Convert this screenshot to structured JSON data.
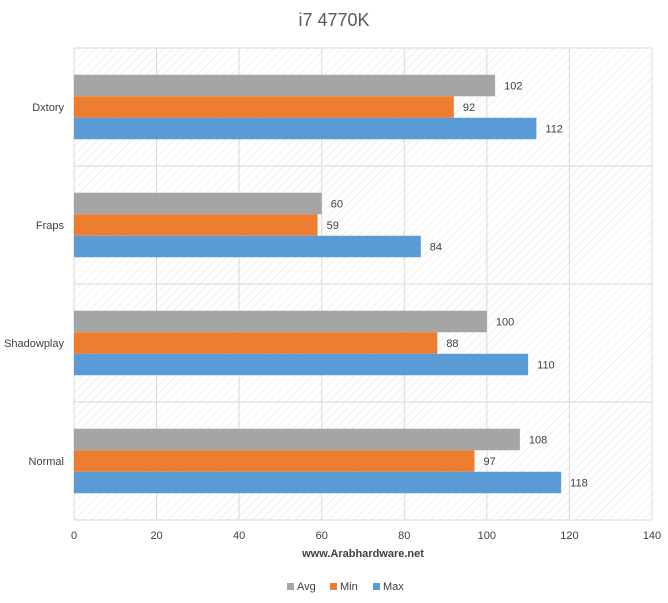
{
  "chart_data": {
    "type": "bar",
    "orientation": "horizontal",
    "title": "i7 4770K",
    "xlabel": "www.Arabhardware.net",
    "ylabel": "",
    "categories": [
      "Dxtory",
      "Fraps",
      "Shadowplay",
      "Normal"
    ],
    "series": [
      {
        "name": "Avg",
        "color": "#A5A5A5",
        "values": [
          102,
          60,
          100,
          108
        ]
      },
      {
        "name": "Min",
        "color": "#ED7D31",
        "values": [
          92,
          59,
          88,
          97
        ]
      },
      {
        "name": "Max",
        "color": "#5B9BD5",
        "values": [
          112,
          84,
          110,
          118
        ]
      }
    ],
    "xlim": [
      0,
      140
    ],
    "xticks": [
      0,
      20,
      40,
      60,
      80,
      100,
      120,
      140
    ],
    "data_labels": true,
    "grid": true,
    "legend_position": "bottom",
    "plot_background": "hatched"
  }
}
